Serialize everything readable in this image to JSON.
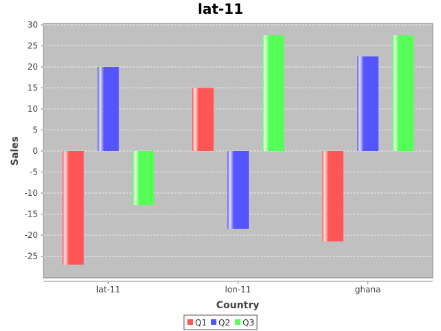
{
  "chart_data": {
    "type": "bar",
    "title": "lat-11",
    "xlabel": "Country",
    "ylabel": "Sales",
    "categories": [
      "lat-11",
      "lon-11",
      "ghana"
    ],
    "series": [
      {
        "name": "Q1",
        "color": "#ff5555",
        "values": [
          -27,
          15,
          -21.5
        ]
      },
      {
        "name": "Q2",
        "color": "#5555ff",
        "values": [
          20,
          -18.5,
          22.5
        ]
      },
      {
        "name": "Q3",
        "color": "#55ff55",
        "values": [
          -12.8,
          27.5,
          27.5
        ]
      }
    ],
    "ylim": [
      -30,
      30
    ],
    "yticks": [
      30,
      25,
      20,
      15,
      10,
      5,
      0,
      -5,
      -10,
      -15,
      -20,
      -25
    ],
    "grid": true,
    "legend_position": "bottom",
    "plot_background": "#c0c0c0"
  }
}
